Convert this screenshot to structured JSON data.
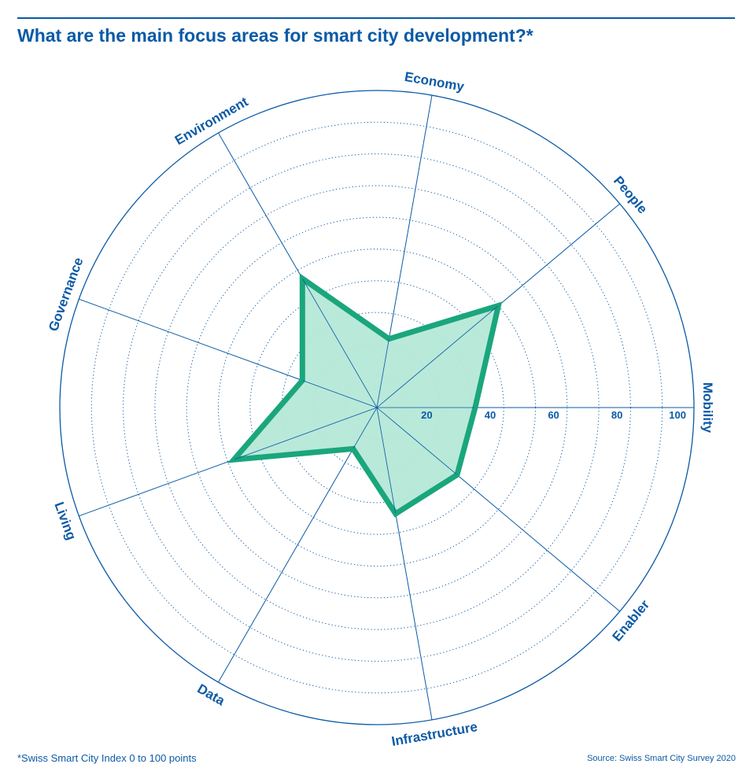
{
  "title": "What are the main focus areas for smart city development?*",
  "footnote": "*Swiss Smart City Index 0 to 100 points",
  "source": "Source: Swiss Smart City Survey 2020",
  "colors": {
    "text": "#0b5aa6",
    "grid": "#0b5aa6",
    "series_stroke": "#1aa67c",
    "series_fill": "#b5e8d7"
  },
  "chart_data": {
    "type": "radar",
    "axes": [
      "Mobility",
      "Enabler",
      "Infrastructure",
      "Data",
      "Living",
      "Governance",
      "Environment",
      "Economy",
      "People"
    ],
    "values": [
      31,
      33,
      34,
      15,
      48,
      25,
      47,
      22,
      50
    ],
    "range": [
      0,
      100
    ],
    "tick_labels": [
      "20",
      "40",
      "60",
      "80",
      "100"
    ],
    "tick_values": [
      20,
      40,
      60,
      80,
      100
    ],
    "dotted_ring_step": 10,
    "grid": true
  }
}
